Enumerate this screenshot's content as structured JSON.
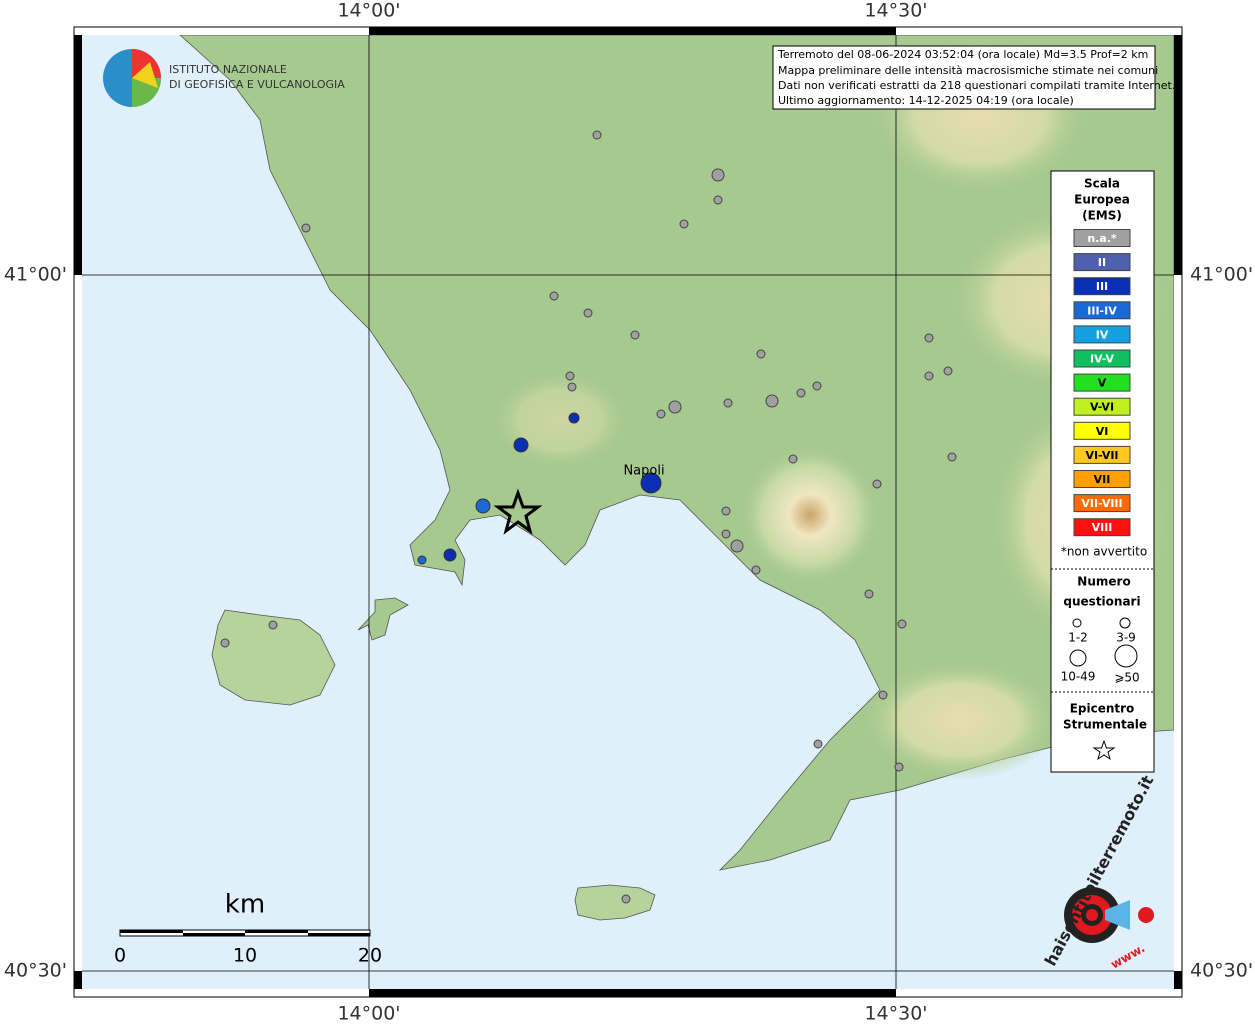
{
  "header": {
    "lines": [
      "Terremoto del 08-06-2024 03:52:04 (ora locale) Md=3.5 Prof=2 km",
      "Mappa preliminare delle intensità macrosismiche stimate nei comuni",
      "Dati non verificati estratti da 218 questionari compilati tramite Internet.",
      "Ultimo aggiornamento: 14-12-2025 04:19 (ora locale)"
    ]
  },
  "axes": {
    "longitudes": [
      "14°00'",
      "14°30'"
    ],
    "latitudes": [
      "41°00'",
      "40°30'"
    ]
  },
  "logo": {
    "org_lines": [
      "ISTITUTO NAZIONALE",
      "DI GEOFISICA E VULCANOLOGIA"
    ],
    "site": "haisentitoilterremoto.it",
    "www": "www."
  },
  "places": [
    "Napoli"
  ],
  "legend": {
    "title_lines": [
      "Scala",
      "Europea",
      "(EMS)"
    ],
    "classes": [
      {
        "label": "n.a.*",
        "color": "#a0a0a0"
      },
      {
        "label": "II",
        "color": "#5060b0"
      },
      {
        "label": "III",
        "color": "#0a2fb4"
      },
      {
        "label": "III-IV",
        "color": "#1a6ad4"
      },
      {
        "label": "IV",
        "color": "#14a0e0"
      },
      {
        "label": "IV-V",
        "color": "#10c060"
      },
      {
        "label": "V",
        "color": "#20e020"
      },
      {
        "label": "V-VI",
        "color": "#c0f020"
      },
      {
        "label": "VI",
        "color": "#ffff00"
      },
      {
        "label": "VI-VII",
        "color": "#ffc820"
      },
      {
        "label": "VII",
        "color": "#ffa000"
      },
      {
        "label": "VII-VIII",
        "color": "#ff6a00"
      },
      {
        "label": "VIII",
        "color": "#ff1010"
      }
    ],
    "note": "*non avvertito",
    "size_title_lines": [
      "Numero",
      "questionari"
    ],
    "sizes": [
      "1-2",
      "3-9",
      "10-49",
      "⩾50"
    ],
    "epicenter_lines": [
      "Epicentro",
      "Strumentale"
    ]
  },
  "scale": {
    "unit": "km",
    "labels": [
      "0",
      "10",
      "20"
    ]
  }
}
